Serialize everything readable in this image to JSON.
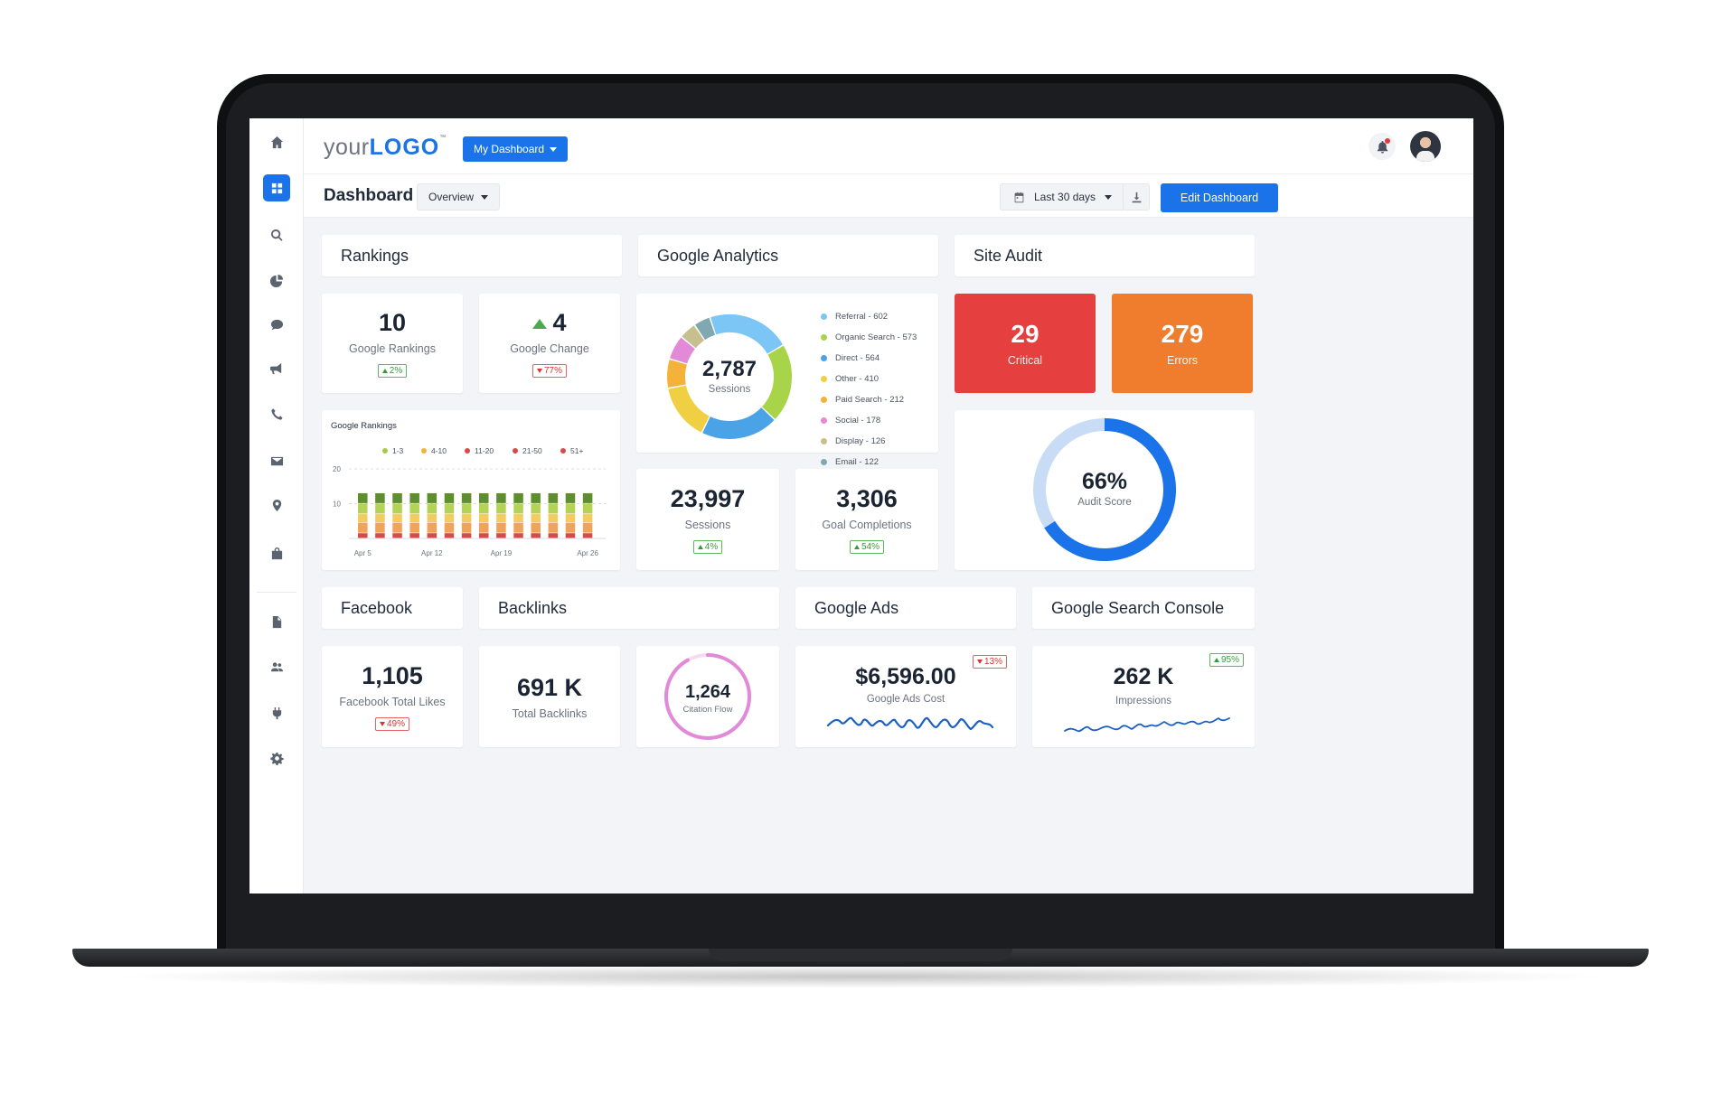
{
  "topbar": {
    "logo_your": "your",
    "logo_logo": "LOGO",
    "logo_tm": "™",
    "dashboard_menu": "My Dashboard"
  },
  "subbar": {
    "title": "Dashboard",
    "view": "Overview",
    "date_range": "Last 30 days",
    "edit_label": "Edit Dashboard"
  },
  "sidebar": {
    "icons": [
      "home-icon",
      "dashboard-icon",
      "search-icon",
      "pie-chart-icon",
      "chat-icon",
      "megaphone-icon",
      "phone-icon",
      "mail-icon",
      "location-icon",
      "shopping-bag-icon",
      "document-icon",
      "users-icon",
      "plug-icon",
      "gear-icon"
    ],
    "active": "dashboard-icon"
  },
  "sections": {
    "rankings": "Rankings",
    "analytics": "Google Analytics",
    "site_audit": "Site Audit",
    "facebook": "Facebook",
    "backlinks": "Backlinks",
    "ads": "Google Ads",
    "search_console": "Google Search Console"
  },
  "rankings": {
    "google_rankings": {
      "value": "10",
      "label": "Google Rankings",
      "change": "2%",
      "direction": "up"
    },
    "google_change": {
      "value": "4",
      "label": "Google Change",
      "change": "77%",
      "direction": "down"
    }
  },
  "analytics": {
    "sessions_total": "2,787",
    "sessions_label": "Sessions",
    "legend": [
      {
        "label": "Referral - 602",
        "value": 602,
        "color": "#7cc6f5"
      },
      {
        "label": "Organic Search - 573",
        "value": 573,
        "color": "#a8d44a"
      },
      {
        "label": "Direct - 564",
        "value": 564,
        "color": "#4aa3e6"
      },
      {
        "label": "Other - 410",
        "value": 410,
        "color": "#f0cf43"
      },
      {
        "label": "Paid Search - 212",
        "value": 212,
        "color": "#f4b23a"
      },
      {
        "label": "Social - 178",
        "value": 178,
        "color": "#e28ad8"
      },
      {
        "label": "Display - 126",
        "value": 126,
        "color": "#c7c08e"
      },
      {
        "label": "Email - 122",
        "value": 122,
        "color": "#7fa8b0"
      }
    ],
    "sessions": {
      "value": "23,997",
      "label": "Sessions",
      "change": "4%",
      "direction": "up"
    },
    "goals": {
      "value": "3,306",
      "label": "Goal Completions",
      "change": "54%",
      "direction": "up"
    }
  },
  "site_audit": {
    "critical": {
      "value": "29",
      "label": "Critical",
      "color": "#e53f3f"
    },
    "errors": {
      "value": "279",
      "label": "Errors",
      "color": "#ef7d2d"
    },
    "score": {
      "value": "66%",
      "label": "Audit Score",
      "fraction": 0.66,
      "color": "#1a73e8",
      "track": "#c8dcf5"
    }
  },
  "chart_data": {
    "type": "bar",
    "title": "Google Rankings",
    "stacked": true,
    "categories": [
      "Apr 5",
      "",
      "",
      "",
      "Apr 12",
      "",
      "",
      "",
      "Apr 19",
      "",
      "",
      "",
      "",
      "Apr 26"
    ],
    "x_tick_labels": [
      "Apr 5",
      "Apr 12",
      "Apr 19",
      "Apr 26"
    ],
    "ylim": [
      0,
      20
    ],
    "y_ticks": [
      "20",
      "10"
    ],
    "grid": true,
    "legend_position": "top",
    "series": [
      {
        "name": "51+",
        "color": "#d84a4a",
        "values": [
          1.5,
          1.5,
          1.5,
          1.5,
          1.5,
          1.5,
          1.5,
          1.5,
          1.5,
          1.5,
          1.5,
          1.5,
          1.5,
          1.5
        ]
      },
      {
        "name": "21-50",
        "color": "#f0a35a",
        "values": [
          3,
          3,
          3,
          3,
          3,
          3,
          3,
          3,
          3,
          3,
          3,
          3,
          3,
          3
        ]
      },
      {
        "name": "11-20",
        "color": "#f4cc5e",
        "values": [
          2.5,
          2.5,
          2.5,
          2.5,
          2.5,
          2.5,
          2.5,
          2.5,
          2.5,
          2.5,
          2.5,
          2.5,
          2.5,
          2.5
        ]
      },
      {
        "name": "4-10",
        "color": "#b4d256",
        "values": [
          3,
          3,
          3,
          3,
          3,
          3,
          3,
          3,
          3,
          3,
          3,
          3,
          3,
          3
        ]
      },
      {
        "name": "1-3",
        "color": "#5f8f2a",
        "values": [
          3,
          3,
          3,
          3,
          3,
          3,
          3,
          3,
          3,
          3,
          3,
          3,
          3,
          3
        ]
      }
    ],
    "legend_order": [
      "1-3",
      "4-10",
      "11-20",
      "21-50",
      "51+"
    ],
    "legend_colors": [
      "#a8c943",
      "#f4b23a",
      "#d84a4a",
      "#d84a4a",
      "#d84a4a"
    ]
  },
  "facebook": {
    "value": "1,105",
    "label": "Facebook Total Likes",
    "change": "49%",
    "direction": "down"
  },
  "backlinks": {
    "total": {
      "value": "691 K",
      "label": "Total Backlinks"
    },
    "citation": {
      "value": "1,264",
      "label": "Citation Flow",
      "fraction": 0.92,
      "color": "#e08ad8",
      "track": "#f5dcf2"
    }
  },
  "ads": {
    "value": "$6,596.00",
    "label": "Google Ads Cost",
    "change": "13%",
    "direction": "down"
  },
  "search_console": {
    "value": "262 K",
    "label": "Impressions",
    "change": "95%",
    "direction": "up"
  }
}
